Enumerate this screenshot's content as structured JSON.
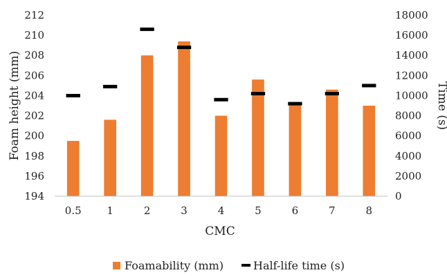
{
  "chart_data": {
    "type": "bar",
    "title": "",
    "xlabel": "CMC",
    "ylabel": "Foam height (mm)",
    "y2label": "Time (s)",
    "categories": [
      "0.5",
      "1",
      "2",
      "3",
      "4",
      "5",
      "6",
      "7",
      "8"
    ],
    "ylim": [
      194,
      212
    ],
    "yticks": [
      "194",
      "196",
      "198",
      "200",
      "202",
      "204",
      "206",
      "208",
      "210",
      "212"
    ],
    "y2lim": [
      0,
      18000
    ],
    "y2ticks": [
      "0",
      "2000",
      "4000",
      "6000",
      "8000",
      "10000",
      "12000",
      "14000",
      "16000",
      "18000"
    ],
    "grid": false,
    "legend_position": "bottom",
    "series": [
      {
        "name": "Foamability (mm)",
        "kind": "bar",
        "axis": "left",
        "color": "#ED7D31",
        "values": [
          199.5,
          201.6,
          208.0,
          209.4,
          202.0,
          205.6,
          203.2,
          204.6,
          203.0
        ]
      },
      {
        "name": "Half-life time (s)",
        "kind": "marker-dash",
        "axis": "right",
        "color": "#000000",
        "values": [
          10000,
          10900,
          16600,
          14800,
          9600,
          10200,
          9200,
          10200,
          11000
        ]
      }
    ]
  }
}
